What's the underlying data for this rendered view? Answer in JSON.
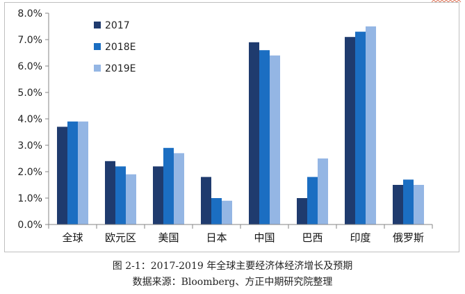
{
  "chart_data": {
    "type": "bar",
    "categories": [
      "全球",
      "欧元区",
      "美国",
      "日本",
      "中国",
      "巴西",
      "印度",
      "俄罗斯"
    ],
    "series": [
      {
        "name": "2017",
        "color": "#1f3b6e",
        "values": [
          3.7,
          2.4,
          2.2,
          1.8,
          6.9,
          1.0,
          7.1,
          1.5
        ]
      },
      {
        "name": "2018E",
        "color": "#1b6ec2",
        "values": [
          3.9,
          2.2,
          2.9,
          1.0,
          6.6,
          1.8,
          7.3,
          1.7
        ]
      },
      {
        "name": "2019E",
        "color": "#94b6e4",
        "values": [
          3.9,
          1.9,
          2.7,
          0.9,
          6.4,
          2.5,
          7.5,
          1.5
        ]
      }
    ],
    "ylim": [
      0,
      8
    ],
    "yticks": [
      "0.0%",
      "1.0%",
      "2.0%",
      "3.0%",
      "4.0%",
      "5.0%",
      "6.0%",
      "7.0%",
      "8.0%"
    ],
    "grid": false,
    "legend_position": "top-left"
  },
  "caption": {
    "title": "图 2-1：2017-2019 年全球主要经济体经济增长及预期",
    "source": "数据来源：Bloomberg、方正中期研究院整理"
  }
}
